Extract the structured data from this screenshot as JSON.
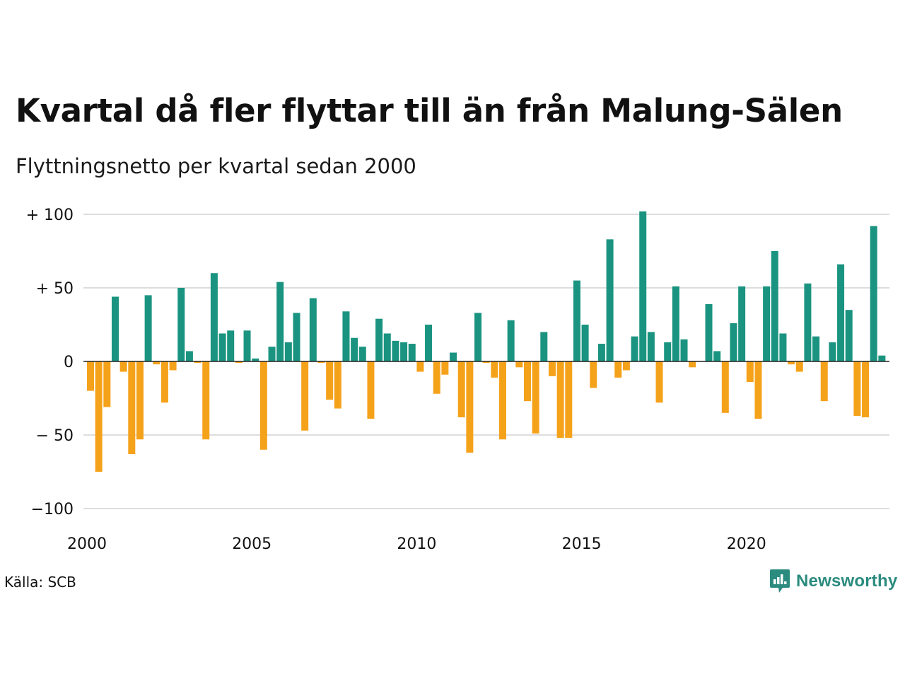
{
  "title": "Kvartal då fler flyttar till än från Malung-Sälen",
  "subtitle": "Flyttningsnetto per kvartal sedan 2000",
  "source": "Källa: SCB",
  "brand": {
    "name": "Newsworthy",
    "color": "#2a8b7e"
  },
  "colors": {
    "positive": "#1a9480",
    "negative": "#f5a21b",
    "grid": "#dddddd",
    "zero_line": "#222222"
  },
  "chart_data": {
    "type": "bar",
    "x_start": "2000 Q1",
    "ylim": [
      -100,
      100
    ],
    "yticks": [
      {
        "value": 100,
        "label": "+ 100"
      },
      {
        "value": 50,
        "label": "+  50"
      },
      {
        "value": 0,
        "label": "0"
      },
      {
        "value": -50,
        "label": "− 50"
      },
      {
        "value": -100,
        "label": "−100"
      }
    ],
    "xticks": [
      "2000",
      "2005",
      "2010",
      "2015",
      "2020"
    ],
    "grid": true,
    "values": [
      -20,
      -75,
      -31,
      44,
      -7,
      -63,
      -53,
      45,
      -2,
      -28,
      -6,
      50,
      7,
      -1,
      -53,
      60,
      19,
      21,
      -1,
      21,
      2,
      -60,
      10,
      54,
      13,
      33,
      -47,
      43,
      -1,
      -26,
      -32,
      34,
      16,
      10,
      -39,
      29,
      19,
      14,
      13,
      12,
      -7,
      25,
      -22,
      -9,
      6,
      -38,
      -62,
      33,
      -1,
      -11,
      -53,
      28,
      -4,
      -27,
      -49,
      20,
      -10,
      -52,
      -52,
      55,
      25,
      -18,
      12,
      83,
      -11,
      -6,
      17,
      102,
      20,
      -28,
      13,
      51,
      15,
      -4,
      0,
      39,
      7,
      -35,
      26,
      51,
      -14,
      -39,
      51,
      75,
      19,
      -2,
      -7,
      53,
      17,
      -27,
      13,
      66,
      35,
      -37,
      -38,
      92,
      4
    ]
  }
}
